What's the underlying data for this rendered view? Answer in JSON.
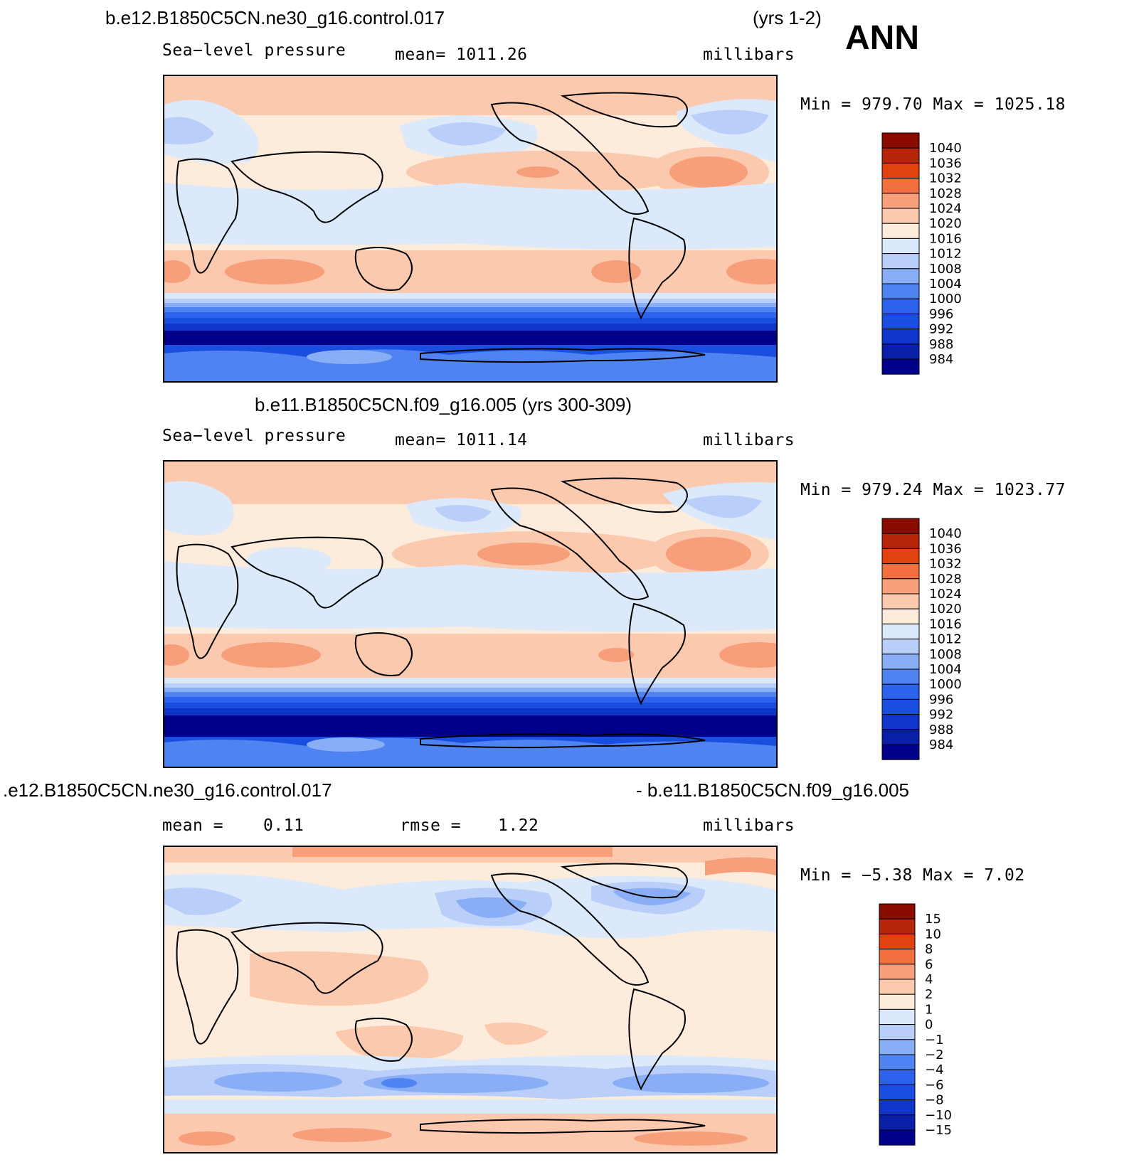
{
  "header": {
    "case_title": "b.e12.B1850C5CN.ne30_g16.control.017",
    "years": "(yrs 1-2)",
    "season": "ANN"
  },
  "panels": [
    {
      "title": "",
      "left_label": "Sea−level pressure",
      "mean_text": "mean=  1011.26",
      "units": "millibars",
      "minmax": "Min  =  979.70  Max  =  1025.18",
      "colorbar": [
        "984",
        "988",
        "992",
        "996",
        "1000",
        "1004",
        "1008",
        "1012",
        "1016",
        "1020",
        "1024",
        "1028",
        "1032",
        "1036",
        "1040"
      ]
    },
    {
      "title": "b.e11.B1850C5CN.f09_g16.005 (yrs 300-309)",
      "left_label": "Sea−level pressure",
      "mean_text": "mean=  1011.14",
      "units": "millibars",
      "minmax": "Min  =  979.24  Max  =  1023.77",
      "colorbar": [
        "984",
        "988",
        "992",
        "996",
        "1000",
        "1004",
        "1008",
        "1012",
        "1016",
        "1020",
        "1024",
        "1028",
        "1032",
        "1036",
        "1040"
      ]
    },
    {
      "title_left": ".e12.B1850C5CN.ne30_g16.control.017",
      "title_right": "- b.e11.B1850C5CN.f09_g16.005",
      "mean_label": "mean  =",
      "mean_value": "0.11",
      "rmse_label": "rmse  =",
      "rmse_value": "1.22",
      "units": "millibars",
      "minmax": "Min  =    −5.38  Max  =     7.02",
      "colorbar": [
        "−15",
        "−10",
        "−8",
        "−6",
        "−4",
        "−2",
        "−1",
        "0",
        "1",
        "2",
        "4",
        "6",
        "8",
        "10",
        "15"
      ]
    }
  ],
  "colors": {
    "abs_scale": [
      "#00008b",
      "#0a1fa8",
      "#0f36c8",
      "#1a4ee0",
      "#2c62ec",
      "#4f83f2",
      "#8aaef6",
      "#b9cffa",
      "#dce9fb",
      "#fdebdc",
      "#fbc9ae",
      "#f79e7a",
      "#f2703f",
      "#e24210",
      "#b8260a",
      "#8a0b00"
    ],
    "diff_scale": [
      "#00008b",
      "#0a1fa8",
      "#0f36c8",
      "#1a4ee0",
      "#2c62ec",
      "#4f83f2",
      "#8aaef6",
      "#b9cffa",
      "#dce9fb",
      "#fdebdc",
      "#fbc9ae",
      "#f79e7a",
      "#f2703f",
      "#e24210",
      "#b8260a",
      "#8a0b00"
    ]
  }
}
